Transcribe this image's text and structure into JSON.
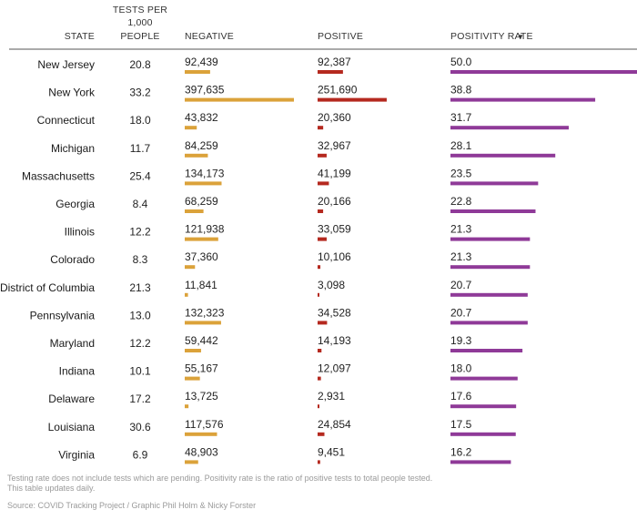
{
  "chart_data": {
    "type": "table",
    "columns": {
      "state": "STATE",
      "tests_per_1000": [
        "TESTS PER",
        "1,000",
        "PEOPLE"
      ],
      "negative": "NEGATIVE",
      "positive": "POSITIVE",
      "positivity_rate": "POSITIVITY RATE",
      "sort_indicator": "▼"
    },
    "rows": [
      {
        "state": "New Jersey",
        "tests_per_1000": "20.8",
        "negative": 92439,
        "negative_label": "92,439",
        "positive": 92387,
        "positive_label": "92,387",
        "rate": 50.0,
        "rate_label": "50.0"
      },
      {
        "state": "New York",
        "tests_per_1000": "33.2",
        "negative": 397635,
        "negative_label": "397,635",
        "positive": 251690,
        "positive_label": "251,690",
        "rate": 38.8,
        "rate_label": "38.8"
      },
      {
        "state": "Connecticut",
        "tests_per_1000": "18.0",
        "negative": 43832,
        "negative_label": "43,832",
        "positive": 20360,
        "positive_label": "20,360",
        "rate": 31.7,
        "rate_label": "31.7"
      },
      {
        "state": "Michigan",
        "tests_per_1000": "11.7",
        "negative": 84259,
        "negative_label": "84,259",
        "positive": 32967,
        "positive_label": "32,967",
        "rate": 28.1,
        "rate_label": "28.1"
      },
      {
        "state": "Massachusetts",
        "tests_per_1000": "25.4",
        "negative": 134173,
        "negative_label": "134,173",
        "positive": 41199,
        "positive_label": "41,199",
        "rate": 23.5,
        "rate_label": "23.5"
      },
      {
        "state": "Georgia",
        "tests_per_1000": "8.4",
        "negative": 68259,
        "negative_label": "68,259",
        "positive": 20166,
        "positive_label": "20,166",
        "rate": 22.8,
        "rate_label": "22.8"
      },
      {
        "state": "Illinois",
        "tests_per_1000": "12.2",
        "negative": 121938,
        "negative_label": "121,938",
        "positive": 33059,
        "positive_label": "33,059",
        "rate": 21.3,
        "rate_label": "21.3"
      },
      {
        "state": "Colorado",
        "tests_per_1000": "8.3",
        "negative": 37360,
        "negative_label": "37,360",
        "positive": 10106,
        "positive_label": "10,106",
        "rate": 21.3,
        "rate_label": "21.3"
      },
      {
        "state": "District of Columbia",
        "tests_per_1000": "21.3",
        "negative": 11841,
        "negative_label": "11,841",
        "positive": 3098,
        "positive_label": "3,098",
        "rate": 20.7,
        "rate_label": "20.7"
      },
      {
        "state": "Pennsylvania",
        "tests_per_1000": "13.0",
        "negative": 132323,
        "negative_label": "132,323",
        "positive": 34528,
        "positive_label": "34,528",
        "rate": 20.7,
        "rate_label": "20.7"
      },
      {
        "state": "Maryland",
        "tests_per_1000": "12.2",
        "negative": 59442,
        "negative_label": "59,442",
        "positive": 14193,
        "positive_label": "14,193",
        "rate": 19.3,
        "rate_label": "19.3"
      },
      {
        "state": "Indiana",
        "tests_per_1000": "10.1",
        "negative": 55167,
        "negative_label": "55,167",
        "positive": 12097,
        "positive_label": "12,097",
        "rate": 18.0,
        "rate_label": "18.0"
      },
      {
        "state": "Delaware",
        "tests_per_1000": "17.2",
        "negative": 13725,
        "negative_label": "13,725",
        "positive": 2931,
        "positive_label": "2,931",
        "rate": 17.6,
        "rate_label": "17.6"
      },
      {
        "state": "Louisiana",
        "tests_per_1000": "30.6",
        "negative": 117576,
        "negative_label": "117,576",
        "positive": 24854,
        "positive_label": "24,854",
        "rate": 17.5,
        "rate_label": "17.5"
      },
      {
        "state": "Virginia",
        "tests_per_1000": "6.9",
        "negative": 48903,
        "negative_label": "48,903",
        "positive": 9451,
        "positive_label": "9,451",
        "rate": 16.2,
        "rate_label": "16.2"
      }
    ],
    "colors": {
      "negative": "#dba23a",
      "positive": "#b5291f",
      "positivity_rate": "#8f3a98"
    }
  },
  "notes": {
    "line1": "Testing rate does not include tests which are pending. Positivity rate is the ratio of positive tests to total people tested.",
    "line2": "This table updates daily.",
    "source": "Source: COVID Tracking Project / Graphic Phil Holm & Nicky Forster"
  }
}
